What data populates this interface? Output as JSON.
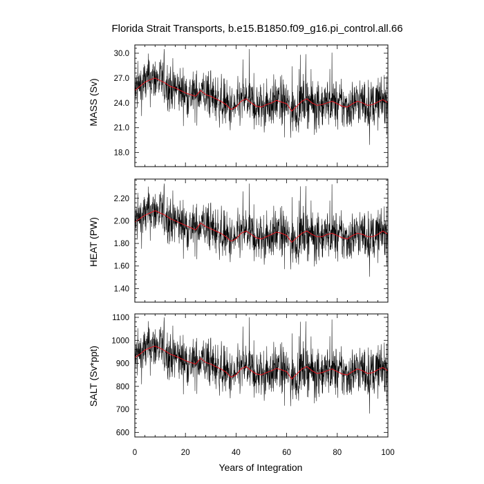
{
  "chart_data": {
    "type": "line",
    "title": "Florida Strait Transports, b.e15.B1850.f09_g16.pi_control.all.66",
    "xlabel": "Years of Integration",
    "xlim": [
      0,
      100
    ],
    "xticks": [
      "0",
      "20",
      "40",
      "60",
      "80",
      "100"
    ],
    "colors": {
      "monthly": "#000000",
      "running_mean": "#e8141e"
    },
    "panels": [
      {
        "ylabel": "MASS (Sv)",
        "ylim": [
          16.3,
          31.0
        ],
        "yticks": [
          "30.0",
          "27.0",
          "24.0",
          "21.0",
          "18.0"
        ],
        "series": [
          {
            "style": "thin black monthly values",
            "x": [
              0,
              2,
              4,
              6,
              8,
              10,
              12,
              14,
              16,
              18,
              20,
              22,
              24,
              26,
              28,
              30,
              32,
              34,
              36,
              38,
              40,
              42,
              44,
              46,
              48,
              50,
              52,
              54,
              56,
              58,
              60,
              62,
              64,
              66,
              68,
              70,
              72,
              74,
              76,
              78,
              80,
              82,
              84,
              86,
              88,
              90,
              92,
              94,
              96,
              98,
              100
            ],
            "values": [
              25.5,
              26.0,
              26.5,
              26.8,
              27.0,
              26.7,
              26.4,
              26.0,
              25.8,
              25.5,
              25.2,
              25.0,
              24.8,
              25.5,
              25.0,
              24.8,
              24.5,
              24.2,
              23.8,
              23.2,
              23.5,
              24.2,
              24.5,
              24.0,
              23.6,
              23.5,
              23.8,
              24.0,
              24.3,
              24.1,
              23.9,
              23.0,
              23.6,
              24.2,
              24.5,
              24.0,
              23.7,
              23.8,
              24.0,
              24.2,
              23.9,
              23.6,
              23.5,
              23.9,
              24.2,
              24.0,
              23.7,
              23.8,
              24.1,
              24.4,
              24.0
            ],
            "range": [
              17.5,
              30.5
            ]
          },
          {
            "style": "red running mean",
            "x": [
              0,
              2,
              4,
              6,
              8,
              10,
              12,
              14,
              16,
              18,
              20,
              22,
              24,
              26,
              28,
              30,
              32,
              34,
              36,
              38,
              40,
              42,
              44,
              46,
              48,
              50,
              52,
              54,
              56,
              58,
              60,
              62,
              64,
              66,
              68,
              70,
              72,
              74,
              76,
              78,
              80,
              82,
              84,
              86,
              88,
              90,
              92,
              94,
              96,
              98,
              100
            ],
            "values": [
              25.5,
              26.0,
              26.5,
              26.8,
              27.0,
              26.7,
              26.4,
              26.0,
              25.8,
              25.5,
              25.2,
              25.0,
              24.8,
              25.5,
              25.0,
              24.8,
              24.5,
              24.2,
              23.8,
              23.2,
              23.5,
              24.2,
              24.5,
              24.0,
              23.6,
              23.5,
              23.8,
              24.0,
              24.3,
              24.1,
              23.9,
              23.0,
              23.6,
              24.2,
              24.5,
              24.0,
              23.7,
              23.8,
              24.0,
              24.2,
              23.9,
              23.6,
              23.5,
              23.9,
              24.2,
              24.0,
              23.7,
              23.8,
              24.1,
              24.4,
              24.0
            ]
          }
        ]
      },
      {
        "ylabel": "HEAT (PW)",
        "ylim": [
          1.28,
          2.37
        ],
        "yticks": [
          "2.20",
          "2.00",
          "1.80",
          "1.60",
          "1.40"
        ],
        "series": [
          {
            "style": "thin black monthly values",
            "x": [
              0,
              2,
              4,
              6,
              8,
              10,
              12,
              14,
              16,
              18,
              20,
              22,
              24,
              26,
              28,
              30,
              32,
              34,
              36,
              38,
              40,
              42,
              44,
              46,
              48,
              50,
              52,
              54,
              56,
              58,
              60,
              62,
              64,
              66,
              68,
              70,
              72,
              74,
              76,
              78,
              80,
              82,
              84,
              86,
              88,
              90,
              92,
              94,
              96,
              98,
              100
            ],
            "values": [
              1.99,
              2.02,
              2.05,
              2.07,
              2.09,
              2.07,
              2.05,
              2.02,
              2.0,
              1.98,
              1.96,
              1.94,
              1.92,
              1.98,
              1.95,
              1.93,
              1.91,
              1.89,
              1.86,
              1.82,
              1.84,
              1.89,
              1.91,
              1.88,
              1.85,
              1.84,
              1.86,
              1.88,
              1.9,
              1.89,
              1.87,
              1.81,
              1.85,
              1.89,
              1.91,
              1.88,
              1.86,
              1.86,
              1.88,
              1.89,
              1.87,
              1.85,
              1.84,
              1.87,
              1.89,
              1.88,
              1.86,
              1.86,
              1.88,
              1.91,
              1.88
            ],
            "range": [
              1.37,
              2.33
            ]
          },
          {
            "style": "red running mean",
            "x": [
              0,
              2,
              4,
              6,
              8,
              10,
              12,
              14,
              16,
              18,
              20,
              22,
              24,
              26,
              28,
              30,
              32,
              34,
              36,
              38,
              40,
              42,
              44,
              46,
              48,
              50,
              52,
              54,
              56,
              58,
              60,
              62,
              64,
              66,
              68,
              70,
              72,
              74,
              76,
              78,
              80,
              82,
              84,
              86,
              88,
              90,
              92,
              94,
              96,
              98,
              100
            ],
            "values": [
              1.99,
              2.02,
              2.05,
              2.07,
              2.09,
              2.07,
              2.05,
              2.02,
              2.0,
              1.98,
              1.96,
              1.94,
              1.92,
              1.98,
              1.95,
              1.93,
              1.91,
              1.89,
              1.86,
              1.82,
              1.84,
              1.89,
              1.91,
              1.88,
              1.85,
              1.84,
              1.86,
              1.88,
              1.9,
              1.89,
              1.87,
              1.81,
              1.85,
              1.89,
              1.91,
              1.88,
              1.86,
              1.86,
              1.88,
              1.89,
              1.87,
              1.85,
              1.84,
              1.87,
              1.89,
              1.88,
              1.86,
              1.86,
              1.88,
              1.91,
              1.88
            ]
          }
        ]
      },
      {
        "ylabel": "SALT (Sv*ppt)",
        "ylim": [
          580,
          1115
        ],
        "yticks": [
          "1100",
          "1000",
          "900",
          "800",
          "700",
          "600"
        ],
        "series": [
          {
            "style": "thin black monthly values",
            "x": [
              0,
              2,
              4,
              6,
              8,
              10,
              12,
              14,
              16,
              18,
              20,
              22,
              24,
              26,
              28,
              30,
              32,
              34,
              36,
              38,
              40,
              42,
              44,
              46,
              48,
              50,
              52,
              54,
              56,
              58,
              60,
              62,
              64,
              66,
              68,
              70,
              72,
              74,
              76,
              78,
              80,
              82,
              84,
              86,
              88,
              90,
              92,
              94,
              96,
              98,
              100
            ],
            "values": [
              925,
              940,
              958,
              968,
              975,
              966,
              954,
              940,
              932,
              922,
              912,
              904,
              897,
              922,
              904,
              897,
              886,
              876,
              862,
              840,
              850,
              876,
              886,
              868,
              854,
              850,
              860,
              868,
              878,
              872,
              864,
              832,
              854,
              876,
              886,
              868,
              856,
              860,
              868,
              876,
              864,
              854,
              850,
              864,
              876,
              868,
              856,
              860,
              872,
              882,
              868
            ],
            "range": [
              625,
              1100
            ]
          },
          {
            "style": "red running mean",
            "x": [
              0,
              2,
              4,
              6,
              8,
              10,
              12,
              14,
              16,
              18,
              20,
              22,
              24,
              26,
              28,
              30,
              32,
              34,
              36,
              38,
              40,
              42,
              44,
              46,
              48,
              50,
              52,
              54,
              56,
              58,
              60,
              62,
              64,
              66,
              68,
              70,
              72,
              74,
              76,
              78,
              80,
              82,
              84,
              86,
              88,
              90,
              92,
              94,
              96,
              98,
              100
            ],
            "values": [
              925,
              940,
              958,
              968,
              975,
              966,
              954,
              940,
              932,
              922,
              912,
              904,
              897,
              922,
              904,
              897,
              886,
              876,
              862,
              840,
              850,
              876,
              886,
              868,
              854,
              850,
              860,
              868,
              878,
              872,
              864,
              832,
              854,
              876,
              886,
              868,
              856,
              860,
              868,
              876,
              864,
              854,
              850,
              864,
              876,
              868,
              856,
              860,
              872,
              882,
              868
            ]
          }
        ]
      }
    ]
  }
}
